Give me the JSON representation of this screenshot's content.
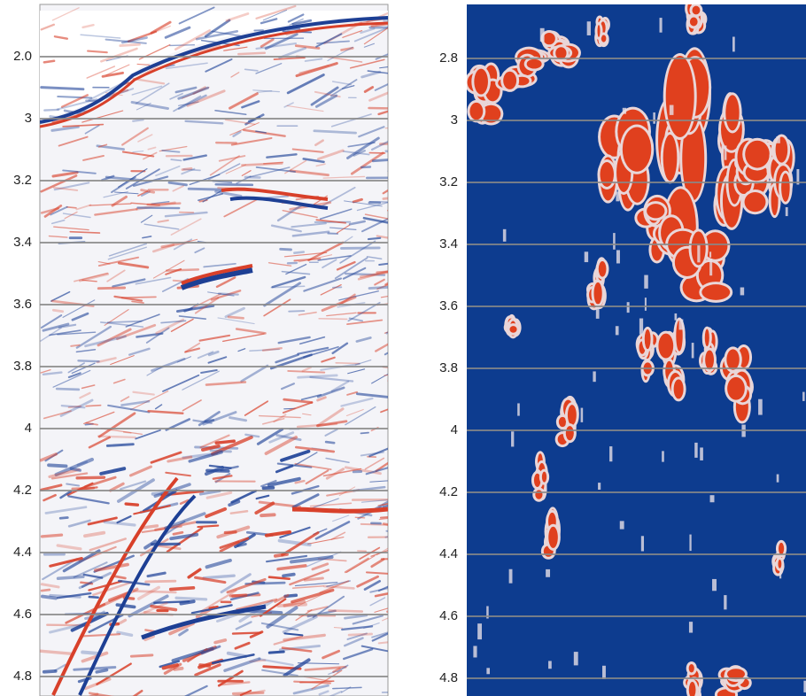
{
  "panels": [
    {
      "axis_labels": [
        "2.0",
        "3",
        "3.2",
        "3.4",
        "3.6",
        "3.8",
        "4",
        "4.2",
        "4.4",
        "4.6",
        "4.8"
      ]
    },
    {
      "axis_labels": [
        "2.8",
        "3",
        "3.2",
        "3.4",
        "3.6",
        "3.8",
        "4",
        "4.2",
        "4.4",
        "4.6",
        "4.8"
      ]
    }
  ]
}
